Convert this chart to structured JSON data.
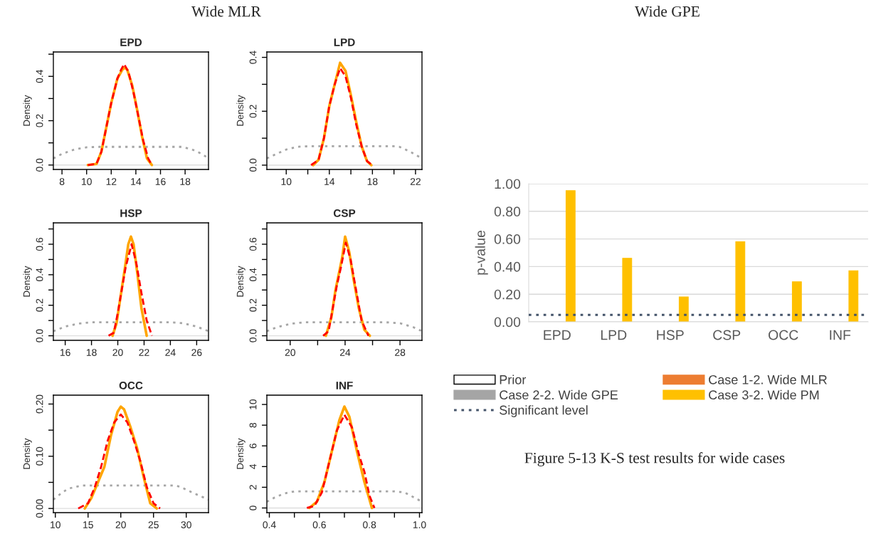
{
  "chart_data": [
    {
      "type": "line",
      "title": "EPD",
      "ylabel": "Density",
      "annotations": [
        "Wide MLR"
      ],
      "xlim": [
        7.3,
        19.9
      ],
      "ylim": [
        -0.02,
        0.51
      ],
      "xticks": [
        8,
        10,
        12,
        14,
        16,
        18
      ],
      "yticks": [
        {
          "value": 0,
          "label": "0.0"
        },
        {
          "value": 0.1,
          "label": null
        },
        {
          "value": 0.2,
          "label": "0.2"
        },
        {
          "value": 0.3,
          "label": null
        },
        {
          "value": 0.4,
          "label": "0.4"
        },
        {
          "value": 0.5,
          "label": null
        }
      ],
      "ref_lines": [
        {
          "axis": "y",
          "value": 0,
          "color": "#dddddd"
        }
      ],
      "series": [
        {
          "color": "#a6a6a6",
          "line_style": "dotted",
          "x": [
            7.3,
            8,
            9,
            10,
            11,
            12,
            14,
            16,
            17,
            17.7,
            18.5,
            19.3,
            19.9
          ],
          "values": [
            0.03,
            0.05,
            0.07,
            0.08,
            0.082,
            0.082,
            0.082,
            0.082,
            0.082,
            0.082,
            0.072,
            0.052,
            0.03
          ]
        },
        {
          "color": "#ff0000",
          "line_style": "dashed",
          "x": [
            10.1,
            10.8,
            11.2,
            11.6,
            12,
            12.5,
            12.8,
            13.05,
            13.4,
            13.8,
            14.2,
            14.6,
            15,
            15.3
          ],
          "values": [
            0,
            0.005,
            0.06,
            0.17,
            0.28,
            0.39,
            0.43,
            0.455,
            0.42,
            0.33,
            0.22,
            0.11,
            0.03,
            0
          ]
        },
        {
          "color": "#ffa500",
          "line_style": "solid",
          "x": [
            10.1,
            10.8,
            11.2,
            11.6,
            12,
            12.5,
            12.9,
            13.1,
            13.3,
            13.7,
            14.1,
            14.5,
            14.9,
            15.3
          ],
          "values": [
            0,
            0.005,
            0.06,
            0.17,
            0.28,
            0.39,
            0.43,
            0.44,
            0.43,
            0.36,
            0.25,
            0.13,
            0.03,
            0
          ]
        }
      ]
    },
    {
      "type": "line",
      "title": "LPD",
      "ylabel": "Density",
      "xlim": [
        8.2,
        22.6
      ],
      "ylim": [
        -0.016,
        0.42
      ],
      "xticks": [
        10,
        {
          "value": 12,
          "label": null
        },
        14,
        {
          "value": 16,
          "label": null
        },
        18,
        {
          "value": 20,
          "label": null
        },
        22
      ],
      "yticks": [
        {
          "value": 0,
          "label": "0.0"
        },
        {
          "value": 0.1,
          "label": null
        },
        {
          "value": 0.2,
          "label": "0.2"
        },
        {
          "value": 0.3,
          "label": null
        },
        {
          "value": 0.4,
          "label": "0.4"
        }
      ],
      "ref_lines": [
        {
          "axis": "y",
          "value": 0,
          "color": "#dddddd"
        }
      ],
      "series": [
        {
          "color": "#a6a6a6",
          "line_style": "dotted",
          "x": [
            8.2,
            9,
            10,
            11,
            12,
            15,
            18,
            20,
            20.5,
            21.5,
            22.6
          ],
          "values": [
            0.025,
            0.04,
            0.058,
            0.068,
            0.07,
            0.07,
            0.07,
            0.07,
            0.068,
            0.05,
            0.025
          ]
        },
        {
          "color": "#ff0000",
          "line_style": "dashed",
          "x": [
            12.3,
            13,
            13.5,
            14,
            14.5,
            15,
            15.5,
            16,
            16.5,
            17,
            17.5,
            18
          ],
          "values": [
            0,
            0.02,
            0.1,
            0.22,
            0.3,
            0.36,
            0.33,
            0.25,
            0.15,
            0.07,
            0.015,
            0
          ]
        },
        {
          "color": "#ffa500",
          "line_style": "solid",
          "x": [
            12.5,
            13,
            13.5,
            14,
            14.5,
            15,
            15.5,
            16,
            16.5,
            17,
            17.5,
            17.9
          ],
          "values": [
            0,
            0.02,
            0.1,
            0.22,
            0.3,
            0.38,
            0.35,
            0.26,
            0.16,
            0.07,
            0.015,
            0
          ]
        }
      ]
    },
    {
      "type": "line",
      "title": "HSP",
      "ylabel": "Density",
      "xlim": [
        15.1,
        26.9
      ],
      "ylim": [
        -0.03,
        0.74
      ],
      "xticks": [
        16,
        18,
        20,
        22,
        24,
        26
      ],
      "yticks": [
        {
          "value": 0,
          "label": "0.0"
        },
        {
          "value": 0.1,
          "label": null
        },
        {
          "value": 0.2,
          "label": "0.2"
        },
        {
          "value": 0.3,
          "label": null
        },
        {
          "value": 0.4,
          "label": "0.4"
        },
        {
          "value": 0.5,
          "label": null
        },
        {
          "value": 0.6,
          "label": "0.6"
        },
        {
          "value": 0.7,
          "label": null
        }
      ],
      "ref_lines": [
        {
          "axis": "y",
          "value": 0,
          "color": "#dddddd"
        }
      ],
      "series": [
        {
          "color": "#a6a6a6",
          "line_style": "dotted",
          "x": [
            15.1,
            16,
            17,
            18,
            21,
            24,
            25,
            26,
            26.9
          ],
          "values": [
            0.03,
            0.06,
            0.08,
            0.088,
            0.088,
            0.088,
            0.082,
            0.06,
            0.03
          ]
        },
        {
          "color": "#ff0000",
          "line_style": "dashed",
          "x": [
            19.3,
            19.7,
            20,
            20.3,
            20.6,
            21.05,
            21.4,
            21.8,
            22.2,
            22.6
          ],
          "values": [
            0,
            0.02,
            0.15,
            0.3,
            0.45,
            0.6,
            0.48,
            0.28,
            0.1,
            0
          ]
        },
        {
          "color": "#ffa500",
          "line_style": "solid",
          "x": [
            19.6,
            19.9,
            20.2,
            20.5,
            20.8,
            21,
            21.2,
            21.5,
            21.8,
            22.2
          ],
          "values": [
            0,
            0.08,
            0.25,
            0.42,
            0.6,
            0.65,
            0.6,
            0.4,
            0.18,
            0
          ]
        }
      ]
    },
    {
      "type": "line",
      "title": "CSP",
      "ylabel": "Density",
      "xlim": [
        18.3,
        29.6
      ],
      "ylim": [
        -0.03,
        0.74
      ],
      "xticks": [
        20,
        {
          "value": 22,
          "label": null
        },
        24,
        {
          "value": 26,
          "label": null
        },
        28
      ],
      "yticks": [
        {
          "value": 0,
          "label": "0.0"
        },
        {
          "value": 0.1,
          "label": null
        },
        {
          "value": 0.2,
          "label": "0.2"
        },
        {
          "value": 0.3,
          "label": null
        },
        {
          "value": 0.4,
          "label": "0.4"
        },
        {
          "value": 0.5,
          "label": null
        },
        {
          "value": 0.6,
          "label": "0.6"
        },
        {
          "value": 0.7,
          "label": null
        }
      ],
      "ref_lines": [
        {
          "axis": "y",
          "value": 0,
          "color": "#dddddd"
        }
      ],
      "series": [
        {
          "color": "#a6a6a6",
          "line_style": "dotted",
          "x": [
            18.3,
            19,
            20,
            21,
            24,
            27,
            28,
            29,
            29.6
          ],
          "values": [
            0.03,
            0.055,
            0.078,
            0.088,
            0.088,
            0.088,
            0.082,
            0.055,
            0.03
          ]
        },
        {
          "color": "#ff0000",
          "line_style": "dashed",
          "x": [
            22.4,
            22.8,
            23.1,
            23.4,
            23.7,
            24.05,
            24.4,
            24.8,
            25.2,
            25.7
          ],
          "values": [
            0,
            0.03,
            0.18,
            0.33,
            0.45,
            0.61,
            0.5,
            0.3,
            0.1,
            0
          ]
        },
        {
          "color": "#ffa500",
          "line_style": "solid",
          "x": [
            22.6,
            23,
            23.3,
            23.6,
            23.8,
            24,
            24.3,
            24.6,
            25,
            25.4,
            25.8
          ],
          "values": [
            0,
            0.12,
            0.3,
            0.43,
            0.52,
            0.65,
            0.55,
            0.38,
            0.18,
            0.04,
            0
          ]
        }
      ]
    },
    {
      "type": "line",
      "title": "OCC",
      "ylabel": "Density",
      "xlim": [
        9.7,
        33.4
      ],
      "ylim": [
        -0.008,
        0.217
      ],
      "xticks": [
        10,
        15,
        20,
        25,
        30
      ],
      "yticks": [
        {
          "value": 0,
          "label": "0.00"
        },
        {
          "value": 0.05,
          "label": null
        },
        {
          "value": 0.1,
          "label": "0.10"
        },
        {
          "value": 0.15,
          "label": null
        },
        {
          "value": 0.2,
          "label": "0.20"
        }
      ],
      "ref_lines": [
        {
          "axis": "y",
          "value": 0,
          "color": "#dddddd"
        }
      ],
      "series": [
        {
          "color": "#a6a6a6",
          "line_style": "dotted",
          "x": [
            9.7,
            11,
            12,
            14,
            20,
            28,
            29,
            31,
            33.4
          ],
          "values": [
            0.017,
            0.03,
            0.038,
            0.044,
            0.044,
            0.044,
            0.042,
            0.03,
            0.017
          ]
        },
        {
          "color": "#ff0000",
          "line_style": "dashed",
          "x": [
            13.5,
            15,
            16,
            17,
            18,
            19,
            20,
            21,
            22,
            23,
            24,
            25,
            26
          ],
          "values": [
            0,
            0.01,
            0.04,
            0.08,
            0.13,
            0.165,
            0.18,
            0.165,
            0.13,
            0.09,
            0.04,
            0.01,
            0
          ]
        },
        {
          "color": "#ffa500",
          "line_style": "solid",
          "x": [
            14.5,
            15.5,
            16.5,
            17.5,
            18.5,
            19.5,
            20,
            20.5,
            21.5,
            22.5,
            23.5,
            24.5,
            25.5
          ],
          "values": [
            0,
            0.02,
            0.05,
            0.08,
            0.14,
            0.185,
            0.195,
            0.19,
            0.155,
            0.115,
            0.06,
            0.01,
            0
          ]
        }
      ]
    },
    {
      "type": "line",
      "title": "INF",
      "ylabel": "Density",
      "xlim": [
        0.39,
        1.01
      ],
      "ylim": [
        -0.45,
        10.9
      ],
      "xticks": [
        0.4,
        {
          "value": 0.5,
          "label": null
        },
        0.6,
        {
          "value": 0.7,
          "label": null
        },
        0.8,
        {
          "value": 0.9,
          "label": null
        },
        {
          "value": 1.0,
          "label": "1.0"
        }
      ],
      "yticks": [
        0,
        2,
        4,
        6,
        8,
        10
      ],
      "ref_lines": [
        {
          "axis": "y",
          "value": 0,
          "color": "#dddddd"
        }
      ],
      "series": [
        {
          "color": "#a6a6a6",
          "line_style": "dotted",
          "x": [
            0.39,
            0.42,
            0.46,
            0.5,
            0.7,
            0.9,
            0.94,
            0.98,
            1.01
          ],
          "values": [
            0.6,
            1.0,
            1.4,
            1.6,
            1.6,
            1.6,
            1.5,
            1.0,
            0.6
          ]
        },
        {
          "color": "#ff0000",
          "line_style": "dashed",
          "x": [
            0.55,
            0.58,
            0.61,
            0.64,
            0.67,
            0.7,
            0.73,
            0.76,
            0.78,
            0.8,
            0.82
          ],
          "values": [
            0,
            0.2,
            1.5,
            4.5,
            7.5,
            9,
            7.8,
            5,
            3.5,
            1.2,
            0
          ]
        },
        {
          "color": "#ffa500",
          "line_style": "solid",
          "x": [
            0.56,
            0.59,
            0.62,
            0.65,
            0.68,
            0.7,
            0.72,
            0.75,
            0.78,
            0.81
          ],
          "values": [
            0,
            0.6,
            2.5,
            5.5,
            8.5,
            9.8,
            8.8,
            5.5,
            2.5,
            0
          ]
        }
      ]
    },
    {
      "type": "bar",
      "ylabel": "p-value",
      "annotations": [
        "Wide GPE",
        "Figure 5-13 K-S test results for wide cases"
      ],
      "categories": [
        "EPD",
        "LPD",
        "HSP",
        "CSP",
        "OCC",
        "INF"
      ],
      "ylim": [
        0,
        1
      ],
      "yticks": [
        {
          "value": 0,
          "label": "0.00"
        },
        {
          "value": 0.2,
          "label": "0.20"
        },
        {
          "value": 0.4,
          "label": "0.40"
        },
        {
          "value": 0.6,
          "label": "0.60"
        },
        {
          "value": 0.8,
          "label": "0.80"
        },
        {
          "value": 1,
          "label": "1.00"
        }
      ],
      "grid": "y",
      "legend": "bottom",
      "ref_lines": [
        {
          "axis": "y",
          "value": 0.05,
          "label": "Significant level",
          "color": "#44546a",
          "line_style": "dotted"
        }
      ],
      "series": [
        {
          "name": "Prior",
          "color": "#ffffff",
          "values": [
            null,
            null,
            null,
            null,
            null,
            null
          ]
        },
        {
          "name": "Case 1-2. Wide MLR",
          "color": "#ed7d31",
          "values": [
            null,
            null,
            null,
            null,
            null,
            null
          ]
        },
        {
          "name": "Case 2-2. Wide GPE",
          "color": "#a5a5a5",
          "values": [
            null,
            null,
            null,
            null,
            null,
            null
          ]
        },
        {
          "name": "Case 3-2. Wide PM",
          "color": "#ffc000",
          "values": [
            0.95,
            0.46,
            0.18,
            0.58,
            0.29,
            0.37
          ]
        }
      ]
    }
  ]
}
